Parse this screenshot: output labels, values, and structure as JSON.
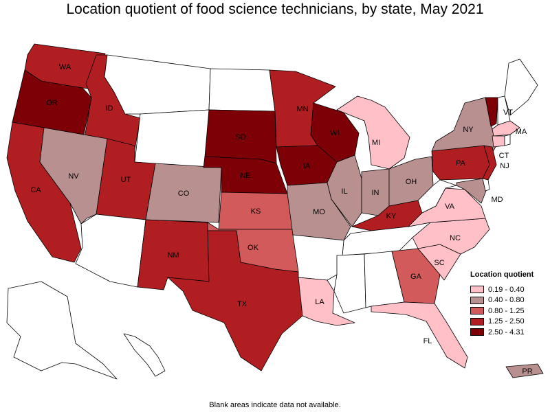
{
  "title": "Location quotient of food science technicians, by state, May 2021",
  "footnote": "Blank areas indicate data not available.",
  "legend": {
    "title": "Location quotient",
    "items": [
      {
        "label": "0.19 - 0.40",
        "color": "#ffc0c8"
      },
      {
        "label": "0.40 - 0.80",
        "color": "#b99090"
      },
      {
        "label": "0.80 - 1.25",
        "color": "#d25a5a"
      },
      {
        "label": "1.25 - 2.50",
        "color": "#b01e22"
      },
      {
        "label": "2.50 - 4.31",
        "color": "#7c0006"
      }
    ]
  },
  "states": {
    "WA": {
      "label": "WA",
      "category": 3
    },
    "OR": {
      "label": "OR",
      "category": 4
    },
    "ID": {
      "label": "ID",
      "category": 3
    },
    "CA": {
      "label": "CA",
      "category": 3
    },
    "NV": {
      "label": "NV",
      "category": 1
    },
    "UT": {
      "label": "UT",
      "category": 3
    },
    "CO": {
      "label": "CO",
      "category": 1
    },
    "NM": {
      "label": "NM",
      "category": 3
    },
    "TX": {
      "label": "TX",
      "category": 3
    },
    "OK": {
      "label": "OK",
      "category": 2
    },
    "KS": {
      "label": "KS",
      "category": 2
    },
    "NE": {
      "label": "NE",
      "category": 4
    },
    "SD": {
      "label": "SD",
      "category": 4
    },
    "MN": {
      "label": "MN",
      "category": 3
    },
    "IA": {
      "label": "IA",
      "category": 4
    },
    "MO": {
      "label": "MO",
      "category": 1
    },
    "WI": {
      "label": "WI",
      "category": 4
    },
    "IL": {
      "label": "IL",
      "category": 1
    },
    "IN": {
      "label": "IN",
      "category": 1
    },
    "MI": {
      "label": "MI",
      "category": 0
    },
    "OH": {
      "label": "OH",
      "category": 1
    },
    "KY": {
      "label": "KY",
      "category": 3
    },
    "LA": {
      "label": "LA",
      "category": 0
    },
    "GA": {
      "label": "GA",
      "category": 2
    },
    "FL": {
      "label": "FL",
      "category": 0
    },
    "SC": {
      "label": "SC",
      "category": 0
    },
    "NC": {
      "label": "NC",
      "category": 0
    },
    "VA": {
      "label": "VA",
      "category": 0
    },
    "PA": {
      "label": "PA",
      "category": 3
    },
    "NY": {
      "label": "NY",
      "category": 1
    },
    "NJ": {
      "label": "NJ",
      "category": 3
    },
    "MD": {
      "label": "MD",
      "category": 1
    },
    "CT": {
      "label": "CT",
      "category": 0
    },
    "MA": {
      "label": "MA",
      "category": 0
    },
    "VT": {
      "label": "VT",
      "category": 4
    },
    "PR": {
      "label": "PR",
      "category": 1
    },
    "MT": {
      "label": "",
      "category": null
    },
    "WY": {
      "label": "",
      "category": null
    },
    "ND": {
      "label": "",
      "category": null
    },
    "AZ": {
      "label": "",
      "category": null
    },
    "AR": {
      "label": "",
      "category": null
    },
    "MS": {
      "label": "",
      "category": null
    },
    "AL": {
      "label": "",
      "category": null
    },
    "TN": {
      "label": "",
      "category": null
    },
    "WV": {
      "label": "",
      "category": null
    },
    "ME": {
      "label": "",
      "category": null
    },
    "NH": {
      "label": "",
      "category": null
    },
    "RI": {
      "label": "",
      "category": null
    },
    "DE": {
      "label": "",
      "category": null
    },
    "AK": {
      "label": "",
      "category": null
    },
    "HI": {
      "label": "",
      "category": null
    }
  }
}
